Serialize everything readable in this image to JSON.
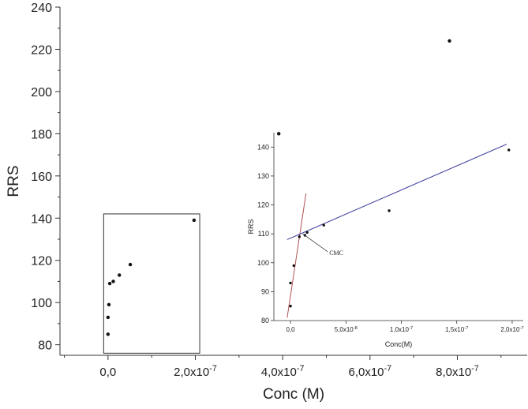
{
  "chart_data": [
    {
      "type": "scatter",
      "xlabel": "Conc (M)",
      "ylabel": "RRS",
      "xlim": [
        -1.1e-07,
        9.6e-07
      ],
      "ylim": [
        75,
        240
      ],
      "xticks": [
        {
          "value": 0,
          "label": "0,0"
        },
        {
          "value": 2e-07,
          "label": "2,0x10",
          "exp": "-7"
        },
        {
          "value": 4e-07,
          "label": "4,0x10",
          "exp": "-7"
        },
        {
          "value": 6e-07,
          "label": "6,0x10",
          "exp": "-7"
        },
        {
          "value": 8e-07,
          "label": "8,0x10",
          "exp": "-7"
        }
      ],
      "yticks": [
        80,
        100,
        120,
        140,
        160,
        180,
        200,
        220,
        240
      ],
      "series": [
        {
          "points": [
            {
              "x": 0,
              "y": 85
            },
            {
              "x": 0,
              "y": 93
            },
            {
              "x": 2e-09,
              "y": 99
            },
            {
              "x": 4e-09,
              "y": 109
            },
            {
              "x": 1.2e-08,
              "y": 110
            },
            {
              "x": 2.6e-08,
              "y": 113
            },
            {
              "x": 5.1e-08,
              "y": 118
            },
            {
              "x": 1.97e-07,
              "y": 139
            },
            {
              "x": 3.91e-07,
              "y": 180
            },
            {
              "x": 7.82e-07,
              "y": 224
            }
          ]
        }
      ],
      "highlight_box": {
        "x0": -1e-08,
        "x1": 2.1e-07,
        "y0": 76,
        "y1": 142
      }
    },
    {
      "type": "scatter",
      "xlabel": "Conc(M)",
      "ylabel": "RRS",
      "xlim": [
        -1.5e-08,
        2.1e-07
      ],
      "ylim": [
        80,
        145
      ],
      "xticks": [
        {
          "value": 0,
          "label": "0,0"
        },
        {
          "value": 5e-08,
          "label": "5,0x10",
          "exp": "-8"
        },
        {
          "value": 1e-07,
          "label": "1,0x10",
          "exp": "-7"
        },
        {
          "value": 1.5e-07,
          "label": "1,5x10",
          "exp": "-7"
        },
        {
          "value": 2e-07,
          "label": "2,0x10",
          "exp": "-7"
        }
      ],
      "yticks": [
        80,
        90,
        100,
        110,
        120,
        130,
        140
      ],
      "series": [
        {
          "points": [
            {
              "x": 0,
              "y": 85
            },
            {
              "x": 0,
              "y": 93
            },
            {
              "x": 3e-09,
              "y": 99
            },
            {
              "x": 8e-09,
              "y": 109
            },
            {
              "x": 1.3e-08,
              "y": 109.5
            },
            {
              "x": 1.5e-08,
              "y": 110.5
            },
            {
              "x": 3e-08,
              "y": 113
            },
            {
              "x": 8.9e-08,
              "y": 118
            },
            {
              "x": 1.97e-07,
              "y": 139
            }
          ]
        }
      ],
      "fit_lines": [
        {
          "color": "#b05050",
          "from": {
            "x": -3e-09,
            "y": 81
          },
          "to": {
            "x": 1.4e-08,
            "y": 124
          }
        },
        {
          "color": "#3a3a9a",
          "from": {
            "x": -3e-09,
            "y": 108
          },
          "to": {
            "x": 1.95e-07,
            "y": 141
          }
        }
      ],
      "annotations": [
        {
          "text": "CMC",
          "point": {
            "x": 1.1e-08,
            "y": 110
          },
          "label_at": {
            "x": 3.5e-08,
            "y": 103
          }
        }
      ]
    }
  ]
}
